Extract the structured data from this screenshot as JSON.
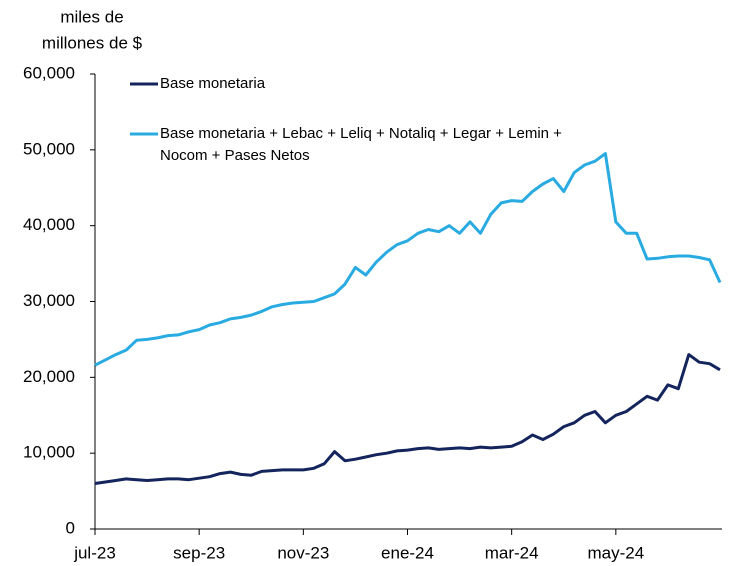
{
  "chart_data": {
    "type": "line",
    "ylabel": [
      "miles de",
      "millones de $"
    ],
    "categories": [
      "jul-23",
      null,
      null,
      null,
      null,
      null,
      null,
      null,
      null,
      null,
      "sep-23",
      null,
      null,
      null,
      null,
      null,
      null,
      null,
      null,
      null,
      "nov-23",
      null,
      null,
      null,
      null,
      null,
      null,
      null,
      null,
      null,
      "ene-24",
      null,
      null,
      null,
      null,
      null,
      null,
      null,
      null,
      null,
      "mar-24",
      null,
      null,
      null,
      null,
      null,
      null,
      null,
      null,
      null,
      "may-24",
      null,
      null,
      null,
      null,
      null,
      null,
      null,
      null,
      null,
      null
    ],
    "series": [
      {
        "name": "Base monetaria",
        "color": "#14245c",
        "values": [
          6000,
          6200,
          6400,
          6600,
          6500,
          6400,
          6500,
          6600,
          6600,
          6500,
          6700,
          6900,
          7300,
          7500,
          7200,
          7100,
          7600,
          7700,
          7800,
          7800,
          7800,
          8000,
          8600,
          10200,
          9000,
          9200,
          9500,
          9800,
          10000,
          10300,
          10400,
          10600,
          10700,
          10500,
          10600,
          10700,
          10600,
          10800,
          10700,
          10800,
          10900,
          11500,
          12400,
          11800,
          12500,
          13500,
          14000,
          15000,
          15500,
          14000,
          15000,
          15500,
          16500,
          17500,
          17000,
          19000,
          18500,
          23000,
          22000,
          21800,
          21000
        ]
      },
      {
        "name": "Base monetaria + Lebac + Leliq + Notaliq + Legar + Lemin + Nocom + Pases Netos",
        "color": "#29abe2",
        "values": [
          21600,
          22300,
          23000,
          23600,
          24900,
          25000,
          25200,
          25500,
          25600,
          26000,
          26300,
          26900,
          27200,
          27700,
          27900,
          28200,
          28700,
          29300,
          29600,
          29800,
          29900,
          30000,
          30500,
          31000,
          32300,
          34500,
          33500,
          35200,
          36500,
          37500,
          38000,
          39000,
          39500,
          39200,
          40000,
          39000,
          40500,
          39000,
          41500,
          43000,
          43300,
          43200,
          44500,
          45500,
          46200,
          44500,
          47000,
          48000,
          48500,
          49500,
          40500,
          39000,
          39000,
          35600,
          35700,
          35900,
          36000,
          36000,
          35800,
          35500,
          32500
        ]
      }
    ],
    "ylim": [
      0,
      60000
    ],
    "yticks": [
      0,
      {
        "value": 10000,
        "label": "10,000"
      },
      {
        "value": 20000,
        "label": "20,000"
      },
      {
        "value": 30000,
        "label": "30,000"
      },
      {
        "value": 40000,
        "label": "40,000"
      },
      {
        "value": 50000,
        "label": "50,000"
      },
      {
        "value": 60000,
        "label": "60,000"
      }
    ],
    "grid": false
  }
}
